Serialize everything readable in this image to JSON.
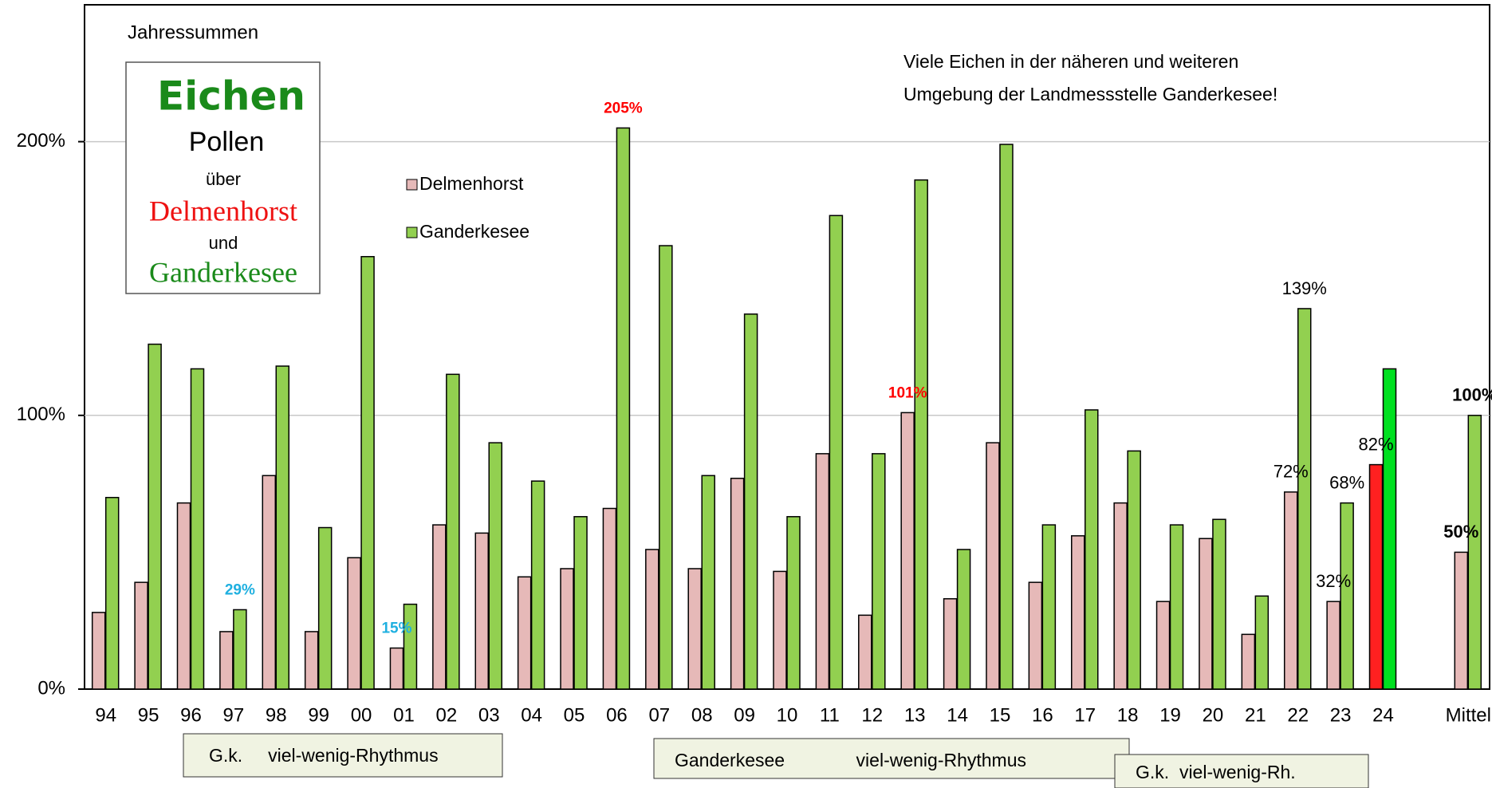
{
  "chart_data": {
    "type": "bar",
    "annotations": {
      "subtitle": "Jahressummen",
      "box": [
        "Eichen",
        "Pollen",
        "über",
        "Delmenhorst",
        "und",
        "Ganderkesee"
      ],
      "note": [
        "Viele Eichen in der näheren und weiteren",
        "Umgebung der Landmessstelle Ganderkesee!"
      ],
      "rhythm": [
        "G.k.     viel-wenig-Rhythmus",
        "Ganderkesee              viel-wenig-Rhythmus",
        "G.k.  viel-wenig-Rh."
      ]
    },
    "categories": [
      "94",
      "95",
      "96",
      "97",
      "98",
      "99",
      "00",
      "01",
      "02",
      "03",
      "04",
      "05",
      "06",
      "07",
      "08",
      "09",
      "10",
      "11",
      "12",
      "13",
      "14",
      "15",
      "16",
      "17",
      "18",
      "19",
      "20",
      "21",
      "22",
      "23",
      "24",
      null,
      "Mittel"
    ],
    "series": [
      {
        "name": "Delmenhorst",
        "color": "#e6b9b8",
        "values": [
          28,
          39,
          68,
          21,
          78,
          21,
          48,
          15,
          60,
          57,
          41,
          44,
          66,
          51,
          44,
          77,
          43,
          86,
          27,
          101,
          33,
          90,
          39,
          56,
          68,
          32,
          55,
          20,
          72,
          32,
          82,
          null,
          50
        ],
        "point_colors": [
          null,
          null,
          null,
          null,
          null,
          null,
          null,
          null,
          null,
          null,
          null,
          null,
          null,
          null,
          null,
          null,
          null,
          null,
          null,
          null,
          null,
          null,
          null,
          null,
          null,
          null,
          null,
          null,
          null,
          null,
          "#ff2020",
          null,
          null
        ],
        "value_labels": [
          null,
          null,
          null,
          null,
          null,
          null,
          null,
          "15%",
          null,
          null,
          null,
          null,
          null,
          null,
          null,
          null,
          null,
          null,
          null,
          "101%",
          null,
          null,
          null,
          null,
          null,
          null,
          null,
          null,
          "72%",
          "32%",
          "82%",
          null,
          "50%"
        ],
        "value_label_colors": [
          null,
          null,
          null,
          null,
          null,
          null,
          null,
          "#1fb0e0",
          null,
          null,
          null,
          null,
          null,
          null,
          null,
          null,
          null,
          null,
          null,
          "#ff0000",
          null,
          null,
          null,
          null,
          null,
          null,
          null,
          null,
          "#000000",
          "#000000",
          "#000000",
          null,
          "#000000"
        ]
      },
      {
        "name": "Ganderkesee",
        "color": "#92d050",
        "values": [
          70,
          126,
          117,
          29,
          118,
          59,
          158,
          31,
          115,
          90,
          76,
          63,
          205,
          162,
          78,
          137,
          63,
          173,
          86,
          186,
          51,
          199,
          60,
          102,
          87,
          60,
          62,
          34,
          139,
          68,
          117,
          null,
          100
        ],
        "point_colors": [
          null,
          null,
          null,
          null,
          null,
          null,
          null,
          null,
          null,
          null,
          null,
          null,
          null,
          null,
          null,
          null,
          null,
          null,
          null,
          null,
          null,
          null,
          null,
          null,
          null,
          null,
          null,
          null,
          null,
          null,
          "#00e020",
          null,
          null
        ],
        "value_labels": [
          null,
          null,
          null,
          "29%",
          null,
          null,
          null,
          null,
          null,
          null,
          null,
          null,
          "205%",
          null,
          null,
          null,
          null,
          null,
          null,
          null,
          null,
          null,
          null,
          null,
          null,
          null,
          null,
          null,
          "139%",
          "68%",
          null,
          null,
          "100%"
        ],
        "value_label_colors": [
          null,
          null,
          null,
          "#1fb0e0",
          null,
          null,
          null,
          null,
          null,
          null,
          null,
          null,
          "#ff0000",
          null,
          null,
          null,
          null,
          null,
          null,
          null,
          null,
          null,
          null,
          null,
          null,
          null,
          null,
          null,
          "#000000",
          "#000000",
          null,
          null,
          "#000000"
        ]
      }
    ],
    "ylim": [
      0,
      250
    ],
    "yticks": [
      {
        "value": 0,
        "label": "0%"
      },
      {
        "value": 100,
        "label": "100%"
      },
      {
        "value": 200,
        "label": "200%"
      }
    ],
    "grid": true
  }
}
